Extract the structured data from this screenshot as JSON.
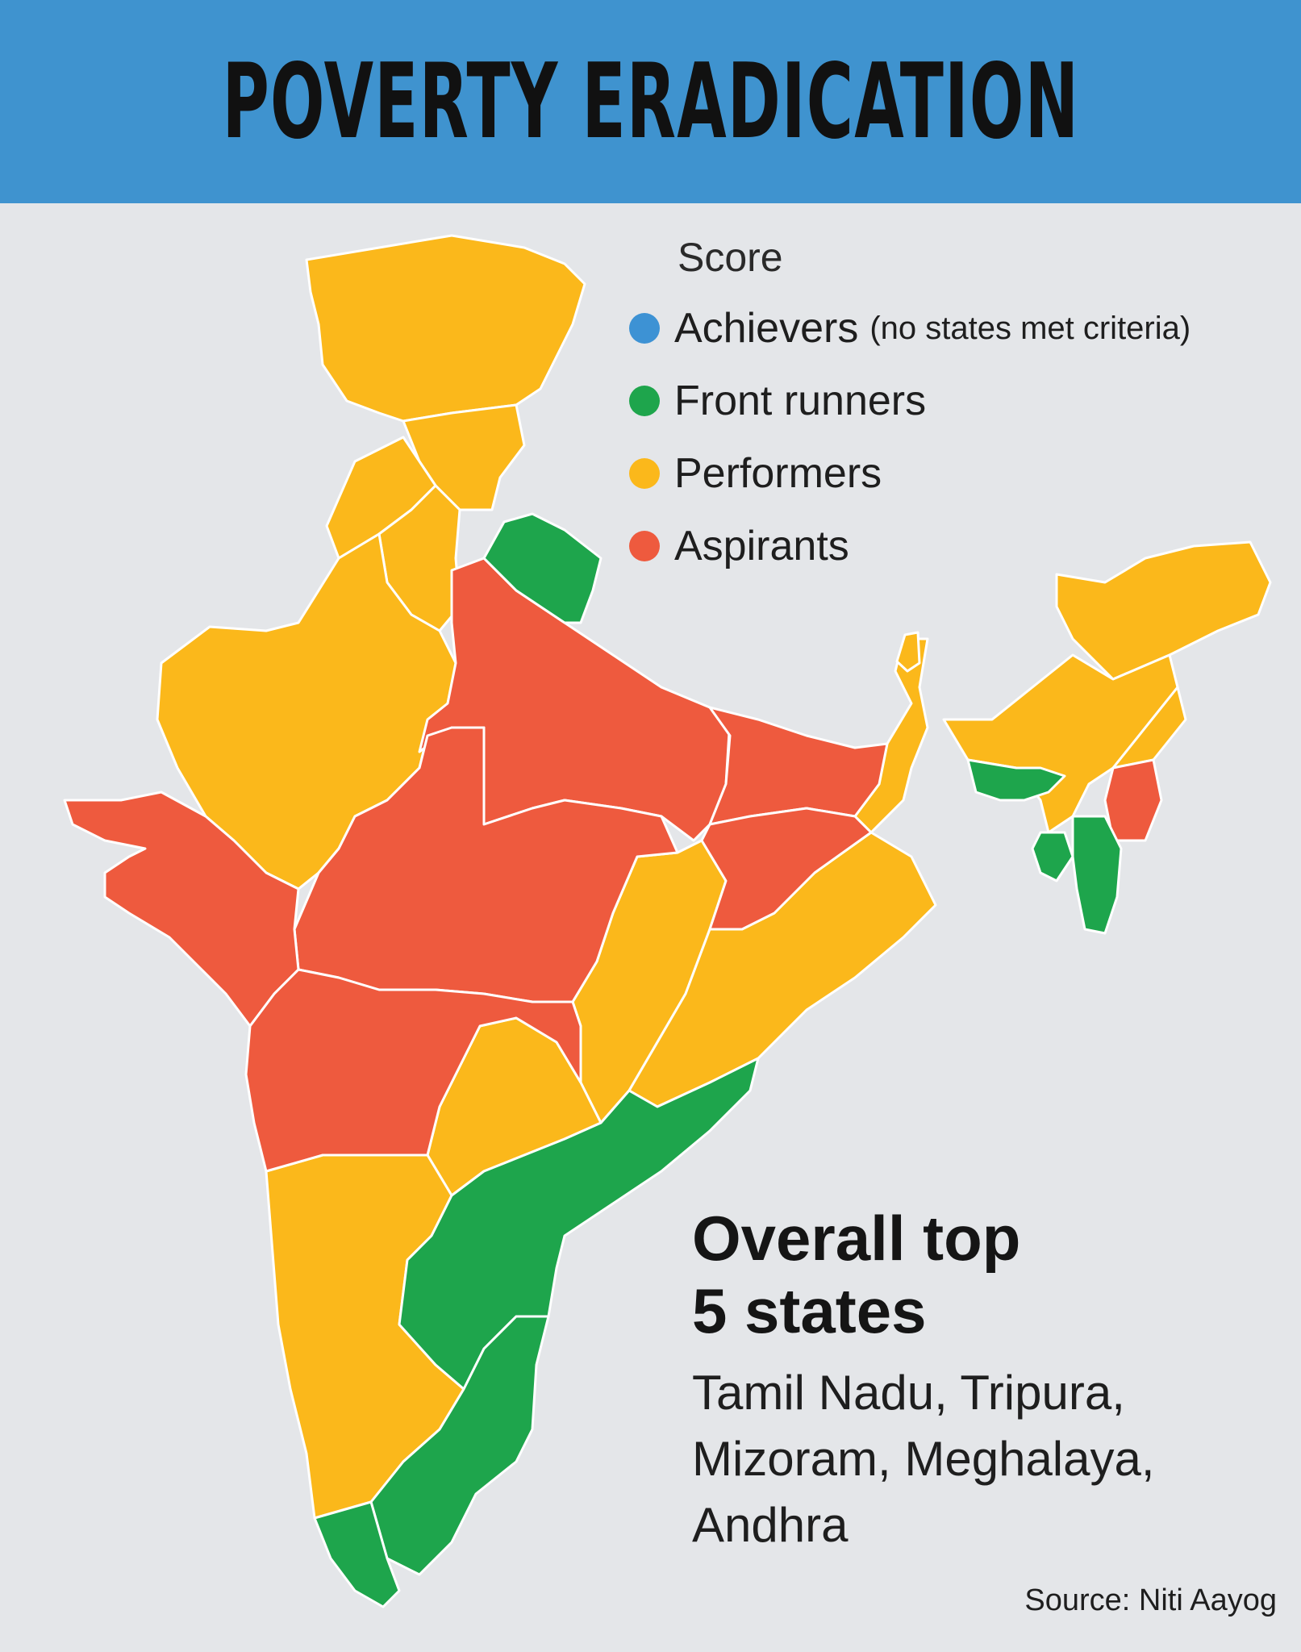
{
  "title": "POVERTY ERADICATION",
  "legend": {
    "title": "Score",
    "items": [
      {
        "label": "Achievers",
        "note": "(no states met criteria)",
        "color": "#3d92d4"
      },
      {
        "label": "Front runners",
        "note": "",
        "color": "#1ea54c"
      },
      {
        "label": "Performers",
        "note": "",
        "color": "#fbb81b"
      },
      {
        "label": "Aspirants",
        "note": "",
        "color": "#ee5a3e"
      }
    ]
  },
  "top_states": {
    "heading_line1": "Overall top",
    "heading_line2": "5 states",
    "line1": "Tamil Nadu, Tripura,",
    "line2": "Mizoram, Meghalaya,",
    "line3": "Andhra"
  },
  "source": "Source: Niti Aayog"
}
